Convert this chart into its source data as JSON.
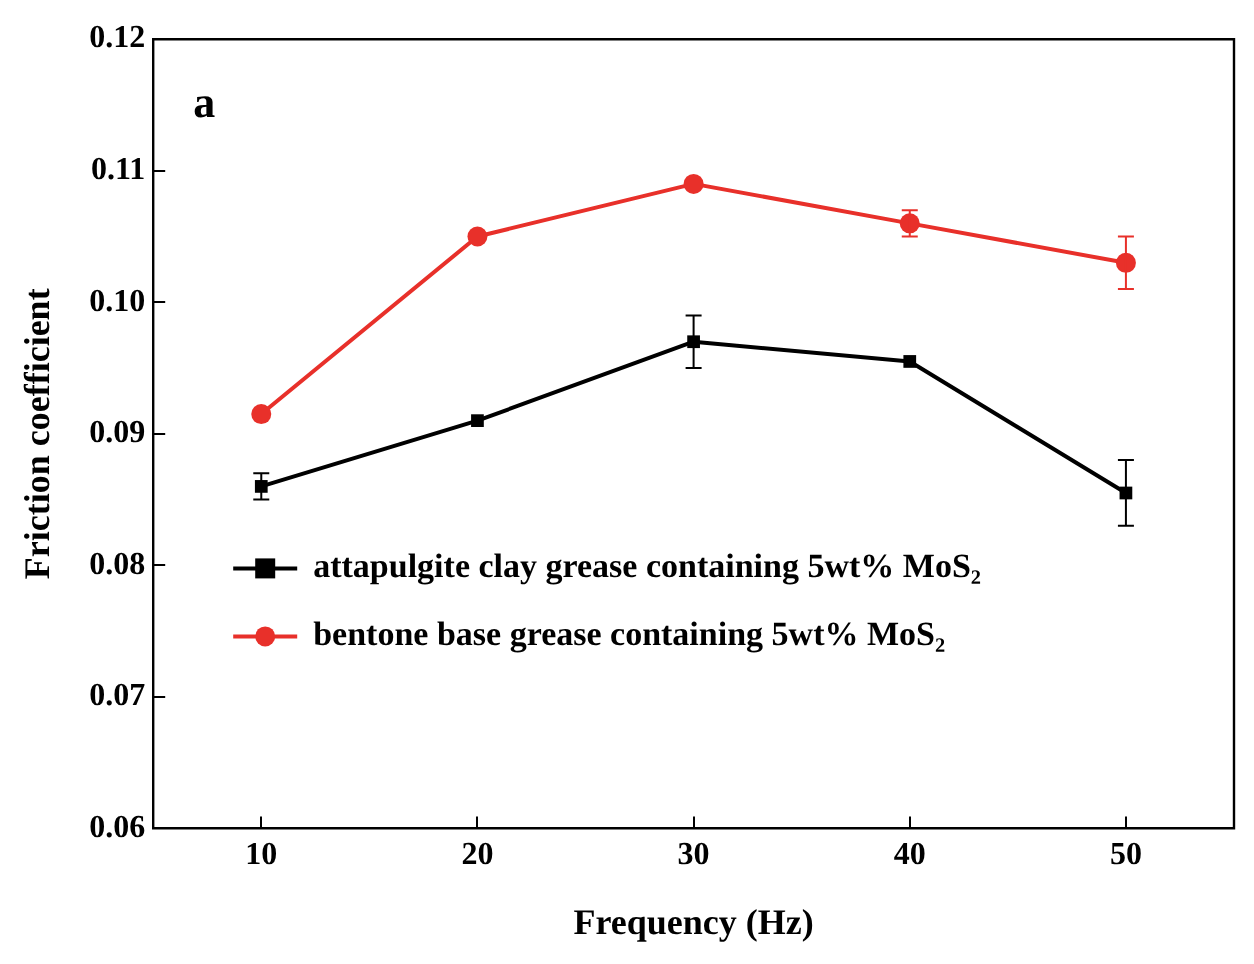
{
  "chart_data": {
    "type": "line",
    "xlabel": "Frequency (Hz)",
    "ylabel": "Friction coefficient",
    "annotations": [
      "a"
    ],
    "x": [
      10,
      20,
      30,
      40,
      50
    ],
    "series": [
      {
        "name": "attapulgite clay grease containing 5wt% MoS₂",
        "color": "#000000",
        "marker": "square",
        "values": [
          0.086,
          0.091,
          0.097,
          0.0955,
          0.0855
        ],
        "errors": [
          0.001,
          null,
          0.002,
          null,
          0.0025
        ]
      },
      {
        "name": "bentone base grease containing 5wt% MoS₂",
        "color": "#e8302a",
        "marker": "circle",
        "values": [
          0.0915,
          0.105,
          0.109,
          0.106,
          0.103
        ],
        "errors": [
          null,
          null,
          null,
          0.001,
          0.002
        ]
      }
    ],
    "xlim": [
      5,
      55
    ],
    "xticks": [
      10,
      20,
      30,
      40,
      50
    ],
    "ylim": [
      0.06,
      0.12
    ],
    "yticks": [
      0.06,
      0.07,
      0.08,
      0.09,
      {
        "value": 0.1,
        "label": "0.10"
      },
      0.11,
      0.12
    ],
    "grid": false,
    "legend": "bottom left"
  }
}
